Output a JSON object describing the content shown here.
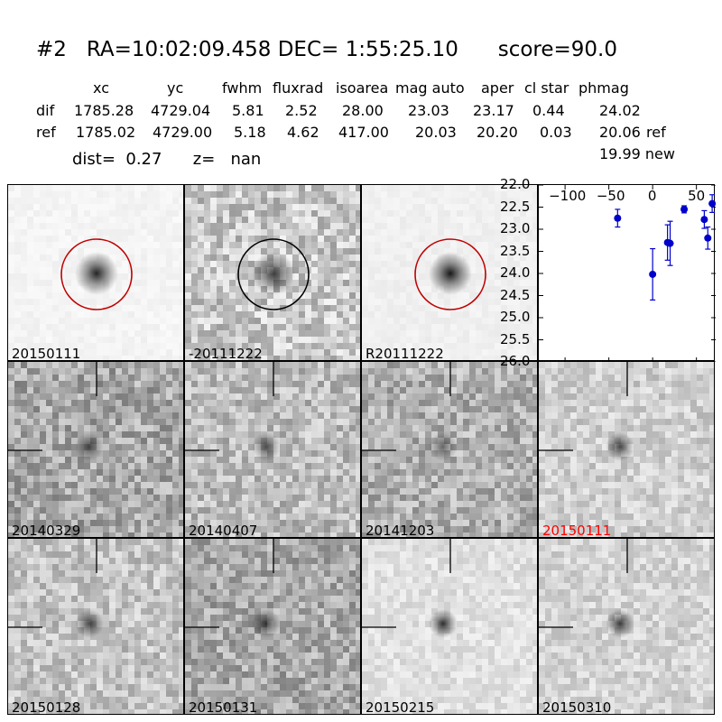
{
  "header": {
    "title": "#2   RA=10:02:09.458 DEC= 1:55:25.10      score=90.0",
    "columns": [
      "xc",
      "yc",
      "fwhm",
      "fluxrad",
      "isoarea",
      "mag auto",
      "aper",
      "cl star",
      "phmag"
    ],
    "rows": [
      {
        "label": "dif",
        "values": [
          "1785.28",
          "4729.04",
          "5.81",
          "2.52",
          "28.00",
          "23.03",
          "23.17",
          "0.44",
          "24.02"
        ],
        "suffix": ""
      },
      {
        "label": "ref",
        "values": [
          "1785.02",
          "4729.00",
          "5.18",
          "4.62",
          "417.00",
          "20.03",
          "20.20",
          "0.03",
          "20.06"
        ],
        "suffix": "ref"
      }
    ],
    "new_phmag": "19.99 new",
    "dist_line": "dist=  0.27      z=   nan"
  },
  "panels": [
    {
      "label": "20150111",
      "label_color": "#000000",
      "bg": "#f4f4f4",
      "noise": 6,
      "blob": 0.85,
      "circle": "#c00000"
    },
    {
      "label": "-20111222",
      "label_color": "#000000",
      "bg": "#c8c8c8",
      "noise": 45,
      "blob": 0.7,
      "circle": "#000000"
    },
    {
      "label": "R20111222",
      "label_color": "#000000",
      "bg": "#f0f0f0",
      "noise": 6,
      "blob": 0.9,
      "circle": "#c00000"
    },
    {
      "label": "20140329",
      "label_color": "#000000",
      "bg": "#a8a8a8",
      "noise": 45,
      "blob": 0.55,
      "circle": ""
    },
    {
      "label": "20140407",
      "label_color": "#000000",
      "bg": "#bcbcbc",
      "noise": 40,
      "blob": 0.55,
      "circle": ""
    },
    {
      "label": "20141203",
      "label_color": "#000000",
      "bg": "#b0b0b0",
      "noise": 42,
      "blob": 0.5,
      "circle": ""
    },
    {
      "label": "20150111",
      "label_color": "#ff0000",
      "bg": "#cfcfcf",
      "noise": 30,
      "blob": 0.7,
      "circle": ""
    },
    {
      "label": "20150128",
      "label_color": "#000000",
      "bg": "#c4c4c4",
      "noise": 36,
      "blob": 0.65,
      "circle": ""
    },
    {
      "label": "20150131",
      "label_color": "#000000",
      "bg": "#a9a9a9",
      "noise": 42,
      "blob": 0.65,
      "circle": ""
    },
    {
      "label": "20150215",
      "label_color": "#000000",
      "bg": "#e0e0e0",
      "noise": 18,
      "blob": 0.8,
      "circle": ""
    },
    {
      "label": "20150310",
      "label_color": "#000000",
      "bg": "#d4d4d4",
      "noise": 26,
      "blob": 0.75,
      "circle": ""
    }
  ],
  "chart_data": {
    "type": "scatter",
    "title": "",
    "xlabel": "",
    "ylabel": "",
    "xlim": [
      -130,
      72
    ],
    "ylim": [
      26.0,
      22.0
    ],
    "y_inverted": true,
    "x_ticks": [
      "-100",
      "-50",
      "0",
      "50"
    ],
    "x_tick_values": [
      -100,
      -50,
      0,
      50
    ],
    "y_ticks": [
      "22.0",
      "22.5",
      "23.0",
      "23.5",
      "24.0",
      "24.5",
      "25.0",
      "25.5",
      "26.0"
    ],
    "y_tick_values": [
      22.0,
      22.5,
      23.0,
      23.5,
      24.0,
      24.5,
      25.0,
      25.5,
      26.0
    ],
    "color": "#0000cc",
    "points": [
      {
        "x": -40,
        "y": 22.75,
        "err": 0.2
      },
      {
        "x": 0,
        "y": 24.02,
        "err": 0.58
      },
      {
        "x": 17,
        "y": 23.3,
        "err": 0.4
      },
      {
        "x": 20,
        "y": 23.32,
        "err": 0.5
      },
      {
        "x": 36,
        "y": 22.55,
        "err": 0.08
      },
      {
        "x": 59,
        "y": 22.78,
        "err": 0.2
      },
      {
        "x": 63,
        "y": 23.2,
        "err": 0.25
      },
      {
        "x": 68,
        "y": 22.42,
        "err": 0.2
      }
    ]
  }
}
